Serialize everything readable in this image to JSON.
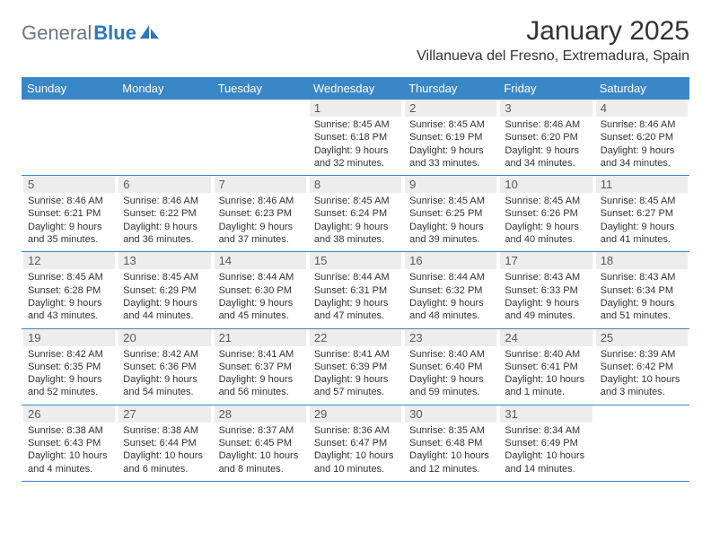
{
  "logo": {
    "part1": "General",
    "part2": "Blue"
  },
  "title": "January 2025",
  "location": "Villanueva del Fresno, Extremadura, Spain",
  "colors": {
    "header_bg": "#3a87c7",
    "header_text": "#ffffff",
    "daynum_bg": "#ededed",
    "daynum_text": "#5a5a5a",
    "body_text": "#333333",
    "logo_gray": "#6b7680",
    "logo_blue": "#2d78b8",
    "rule": "#3a87c7"
  },
  "weekdays": [
    "Sunday",
    "Monday",
    "Tuesday",
    "Wednesday",
    "Thursday",
    "Friday",
    "Saturday"
  ],
  "weeks": [
    [
      null,
      null,
      null,
      {
        "n": "1",
        "sr": "Sunrise: 8:45 AM",
        "ss": "Sunset: 6:18 PM",
        "d1": "Daylight: 9 hours",
        "d2": "and 32 minutes."
      },
      {
        "n": "2",
        "sr": "Sunrise: 8:45 AM",
        "ss": "Sunset: 6:19 PM",
        "d1": "Daylight: 9 hours",
        "d2": "and 33 minutes."
      },
      {
        "n": "3",
        "sr": "Sunrise: 8:46 AM",
        "ss": "Sunset: 6:20 PM",
        "d1": "Daylight: 9 hours",
        "d2": "and 34 minutes."
      },
      {
        "n": "4",
        "sr": "Sunrise: 8:46 AM",
        "ss": "Sunset: 6:20 PM",
        "d1": "Daylight: 9 hours",
        "d2": "and 34 minutes."
      }
    ],
    [
      {
        "n": "5",
        "sr": "Sunrise: 8:46 AM",
        "ss": "Sunset: 6:21 PM",
        "d1": "Daylight: 9 hours",
        "d2": "and 35 minutes."
      },
      {
        "n": "6",
        "sr": "Sunrise: 8:46 AM",
        "ss": "Sunset: 6:22 PM",
        "d1": "Daylight: 9 hours",
        "d2": "and 36 minutes."
      },
      {
        "n": "7",
        "sr": "Sunrise: 8:46 AM",
        "ss": "Sunset: 6:23 PM",
        "d1": "Daylight: 9 hours",
        "d2": "and 37 minutes."
      },
      {
        "n": "8",
        "sr": "Sunrise: 8:45 AM",
        "ss": "Sunset: 6:24 PM",
        "d1": "Daylight: 9 hours",
        "d2": "and 38 minutes."
      },
      {
        "n": "9",
        "sr": "Sunrise: 8:45 AM",
        "ss": "Sunset: 6:25 PM",
        "d1": "Daylight: 9 hours",
        "d2": "and 39 minutes."
      },
      {
        "n": "10",
        "sr": "Sunrise: 8:45 AM",
        "ss": "Sunset: 6:26 PM",
        "d1": "Daylight: 9 hours",
        "d2": "and 40 minutes."
      },
      {
        "n": "11",
        "sr": "Sunrise: 8:45 AM",
        "ss": "Sunset: 6:27 PM",
        "d1": "Daylight: 9 hours",
        "d2": "and 41 minutes."
      }
    ],
    [
      {
        "n": "12",
        "sr": "Sunrise: 8:45 AM",
        "ss": "Sunset: 6:28 PM",
        "d1": "Daylight: 9 hours",
        "d2": "and 43 minutes."
      },
      {
        "n": "13",
        "sr": "Sunrise: 8:45 AM",
        "ss": "Sunset: 6:29 PM",
        "d1": "Daylight: 9 hours",
        "d2": "and 44 minutes."
      },
      {
        "n": "14",
        "sr": "Sunrise: 8:44 AM",
        "ss": "Sunset: 6:30 PM",
        "d1": "Daylight: 9 hours",
        "d2": "and 45 minutes."
      },
      {
        "n": "15",
        "sr": "Sunrise: 8:44 AM",
        "ss": "Sunset: 6:31 PM",
        "d1": "Daylight: 9 hours",
        "d2": "and 47 minutes."
      },
      {
        "n": "16",
        "sr": "Sunrise: 8:44 AM",
        "ss": "Sunset: 6:32 PM",
        "d1": "Daylight: 9 hours",
        "d2": "and 48 minutes."
      },
      {
        "n": "17",
        "sr": "Sunrise: 8:43 AM",
        "ss": "Sunset: 6:33 PM",
        "d1": "Daylight: 9 hours",
        "d2": "and 49 minutes."
      },
      {
        "n": "18",
        "sr": "Sunrise: 8:43 AM",
        "ss": "Sunset: 6:34 PM",
        "d1": "Daylight: 9 hours",
        "d2": "and 51 minutes."
      }
    ],
    [
      {
        "n": "19",
        "sr": "Sunrise: 8:42 AM",
        "ss": "Sunset: 6:35 PM",
        "d1": "Daylight: 9 hours",
        "d2": "and 52 minutes."
      },
      {
        "n": "20",
        "sr": "Sunrise: 8:42 AM",
        "ss": "Sunset: 6:36 PM",
        "d1": "Daylight: 9 hours",
        "d2": "and 54 minutes."
      },
      {
        "n": "21",
        "sr": "Sunrise: 8:41 AM",
        "ss": "Sunset: 6:37 PM",
        "d1": "Daylight: 9 hours",
        "d2": "and 56 minutes."
      },
      {
        "n": "22",
        "sr": "Sunrise: 8:41 AM",
        "ss": "Sunset: 6:39 PM",
        "d1": "Daylight: 9 hours",
        "d2": "and 57 minutes."
      },
      {
        "n": "23",
        "sr": "Sunrise: 8:40 AM",
        "ss": "Sunset: 6:40 PM",
        "d1": "Daylight: 9 hours",
        "d2": "and 59 minutes."
      },
      {
        "n": "24",
        "sr": "Sunrise: 8:40 AM",
        "ss": "Sunset: 6:41 PM",
        "d1": "Daylight: 10 hours",
        "d2": "and 1 minute."
      },
      {
        "n": "25",
        "sr": "Sunrise: 8:39 AM",
        "ss": "Sunset: 6:42 PM",
        "d1": "Daylight: 10 hours",
        "d2": "and 3 minutes."
      }
    ],
    [
      {
        "n": "26",
        "sr": "Sunrise: 8:38 AM",
        "ss": "Sunset: 6:43 PM",
        "d1": "Daylight: 10 hours",
        "d2": "and 4 minutes."
      },
      {
        "n": "27",
        "sr": "Sunrise: 8:38 AM",
        "ss": "Sunset: 6:44 PM",
        "d1": "Daylight: 10 hours",
        "d2": "and 6 minutes."
      },
      {
        "n": "28",
        "sr": "Sunrise: 8:37 AM",
        "ss": "Sunset: 6:45 PM",
        "d1": "Daylight: 10 hours",
        "d2": "and 8 minutes."
      },
      {
        "n": "29",
        "sr": "Sunrise: 8:36 AM",
        "ss": "Sunset: 6:47 PM",
        "d1": "Daylight: 10 hours",
        "d2": "and 10 minutes."
      },
      {
        "n": "30",
        "sr": "Sunrise: 8:35 AM",
        "ss": "Sunset: 6:48 PM",
        "d1": "Daylight: 10 hours",
        "d2": "and 12 minutes."
      },
      {
        "n": "31",
        "sr": "Sunrise: 8:34 AM",
        "ss": "Sunset: 6:49 PM",
        "d1": "Daylight: 10 hours",
        "d2": "and 14 minutes."
      },
      null
    ]
  ]
}
